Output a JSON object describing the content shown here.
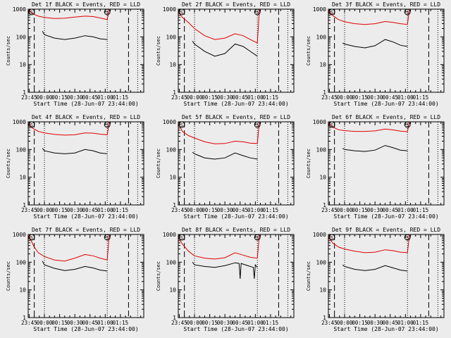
{
  "figure": {
    "background": "#ececec"
  },
  "chart_data": [
    {
      "type": "line",
      "title": "Det 1f BLACK = Events, RED = LLD",
      "xlabel": "Start Time (28-Jun-07 23:44:00)",
      "ylabel": "Counts/sec",
      "yscale": "log",
      "ylim": [
        1,
        1000
      ],
      "yticks": [
        "1",
        "10",
        "100",
        "1000"
      ],
      "xlim_minutes": [
        -16,
        98
      ],
      "xticks": [
        "23:45",
        "00:00",
        "00:15",
        "00:30",
        "00:45",
        "01:00",
        "01:15"
      ],
      "markers": [
        "S",
        "S"
      ],
      "series": [
        {
          "color": "#e00000",
          "x": [
            -16,
            -14,
            -10,
            -6,
            0,
            10,
            20,
            30,
            40,
            48,
            55,
            62,
            64
          ],
          "y": [
            1000,
            800,
            640,
            560,
            500,
            460,
            470,
            520,
            560,
            540,
            480,
            420,
            1000
          ]
        },
        {
          "color": "#000000",
          "x": [
            -2,
            0,
            10,
            20,
            30,
            40,
            48,
            55,
            62
          ],
          "y": [
            160,
            120,
            90,
            80,
            90,
            110,
            100,
            85,
            80
          ]
        }
      ]
    },
    {
      "type": "line",
      "title": "Det 2f BLACK = Events, RED = LLD",
      "xlabel": "Start Time (28-Jun-07 23:44:00)",
      "ylabel": "Counts/sec",
      "yscale": "log",
      "ylim": [
        1,
        1000
      ],
      "yticks": [
        "1",
        "10",
        "100",
        "1000"
      ],
      "xlim_minutes": [
        -16,
        98
      ],
      "xticks": [
        "23:45",
        "00:00",
        "00:15",
        "00:30",
        "00:45",
        "01:00",
        "01:15"
      ],
      "markers": [
        "S",
        "S"
      ],
      "series": [
        {
          "color": "#e00000",
          "x": [
            -16,
            -12,
            -6,
            0,
            10,
            20,
            30,
            40,
            48,
            55,
            62,
            64
          ],
          "y": [
            800,
            500,
            330,
            200,
            110,
            80,
            90,
            130,
            110,
            80,
            60,
            1000
          ]
        },
        {
          "color": "#000000",
          "x": [
            -2,
            0,
            10,
            20,
            30,
            40,
            48,
            55,
            62
          ],
          "y": [
            70,
            55,
            30,
            20,
            25,
            55,
            45,
            30,
            20
          ]
        }
      ]
    },
    {
      "type": "line",
      "title": "Det 3f BLACK = Events, RED = LLD",
      "xlabel": "Start Time (28-Jun-07 23:44:00)",
      "ylabel": "Counts/sec",
      "yscale": "log",
      "ylim": [
        1,
        1000
      ],
      "yticks": [
        "1",
        "10",
        "100",
        "1000"
      ],
      "xlim_minutes": [
        -16,
        98
      ],
      "xticks": [
        "23:45",
        "00:00",
        "00:15",
        "00:30",
        "00:45",
        "01:00",
        "01:15"
      ],
      "markers": [
        "S",
        "S"
      ],
      "series": [
        {
          "color": "#e00000",
          "x": [
            -16,
            -12,
            -6,
            0,
            10,
            20,
            30,
            40,
            48,
            55,
            62,
            64
          ],
          "y": [
            900,
            600,
            420,
            350,
            300,
            280,
            300,
            360,
            330,
            300,
            280,
            1000
          ]
        },
        {
          "color": "#000000",
          "x": [
            -2,
            0,
            10,
            20,
            30,
            40,
            48,
            55,
            62
          ],
          "y": [
            60,
            55,
            45,
            40,
            48,
            80,
            65,
            50,
            45
          ]
        }
      ]
    },
    {
      "type": "line",
      "title": "Det 4f BLACK = Events, RED = LLD",
      "xlabel": "Start Time (28-Jun-07 23:44:00)",
      "ylabel": "Counts/sec",
      "yscale": "log",
      "ylim": [
        1,
        1000
      ],
      "yticks": [
        "1",
        "10",
        "100",
        "1000"
      ],
      "xlim_minutes": [
        -16,
        98
      ],
      "xticks": [
        "23:45",
        "00:00",
        "00:15",
        "00:30",
        "00:45",
        "01:00",
        "01:15"
      ],
      "markers": [
        "S",
        "S"
      ],
      "series": [
        {
          "color": "#e00000",
          "x": [
            -16,
            -12,
            -6,
            0,
            10,
            20,
            30,
            40,
            48,
            55,
            62,
            64
          ],
          "y": [
            900,
            600,
            450,
            400,
            350,
            330,
            340,
            400,
            390,
            360,
            340,
            1000
          ]
        },
        {
          "color": "#000000",
          "x": [
            -2,
            0,
            10,
            20,
            30,
            40,
            48,
            55,
            62
          ],
          "y": [
            110,
            90,
            75,
            70,
            75,
            100,
            90,
            75,
            70
          ]
        }
      ]
    },
    {
      "type": "line",
      "title": "Det 5f BLACK = Events, RED = LLD",
      "xlabel": "Start Time (28-Jun-07 23:44:00)",
      "ylabel": "Counts/sec",
      "yscale": "log",
      "ylim": [
        1,
        1000
      ],
      "yticks": [
        "1",
        "10",
        "100",
        "1000"
      ],
      "xlim_minutes": [
        -16,
        98
      ],
      "xticks": [
        "23:45",
        "00:00",
        "00:15",
        "00:30",
        "00:45",
        "01:00",
        "01:15"
      ],
      "markers": [
        "S",
        "S"
      ],
      "series": [
        {
          "color": "#e00000",
          "x": [
            -16,
            -12,
            -6,
            0,
            10,
            20,
            30,
            40,
            48,
            55,
            62,
            64
          ],
          "y": [
            900,
            450,
            320,
            260,
            190,
            160,
            165,
            200,
            190,
            170,
            165,
            1000
          ]
        },
        {
          "color": "#000000",
          "x": [
            -2,
            0,
            10,
            20,
            30,
            40,
            48,
            55,
            62
          ],
          "y": [
            80,
            70,
            50,
            45,
            50,
            75,
            60,
            50,
            45
          ]
        }
      ]
    },
    {
      "type": "line",
      "title": "Det 6f BLACK = Events, RED = LLD",
      "xlabel": "Start Time (28-Jun-07 23:44:00)",
      "ylabel": "Counts/sec",
      "yscale": "log",
      "ylim": [
        1,
        1000
      ],
      "yticks": [
        "1",
        "10",
        "100",
        "1000"
      ],
      "xlim_minutes": [
        -16,
        98
      ],
      "xticks": [
        "23:45",
        "00:00",
        "00:15",
        "00:30",
        "00:45",
        "01:00",
        "01:15"
      ],
      "markers": [
        "S",
        "S"
      ],
      "series": [
        {
          "color": "#e00000",
          "x": [
            -16,
            -12,
            -6,
            0,
            10,
            20,
            30,
            40,
            48,
            55,
            62,
            64
          ],
          "y": [
            900,
            650,
            520,
            480,
            450,
            450,
            470,
            550,
            510,
            460,
            440,
            1000
          ]
        },
        {
          "color": "#000000",
          "x": [
            -2,
            0,
            10,
            20,
            30,
            40,
            48,
            55,
            62
          ],
          "y": [
            110,
            100,
            90,
            85,
            95,
            140,
            115,
            95,
            90
          ]
        }
      ]
    },
    {
      "type": "line",
      "title": "Det 7f BLACK = Events, RED = LLD",
      "xlabel": "Start Time (28-Jun-07 23:44:00)",
      "ylabel": "Counts/sec",
      "yscale": "log",
      "ylim": [
        1,
        1000
      ],
      "yticks": [
        "1",
        "10",
        "100",
        "1000"
      ],
      "xlim_minutes": [
        -16,
        98
      ],
      "xticks": [
        "23:45",
        "00:00",
        "00:15",
        "00:30",
        "00:45",
        "01:00",
        "01:15"
      ],
      "markers": [
        "S",
        "S"
      ],
      "series": [
        {
          "color": "#e00000",
          "x": [
            -16,
            -14,
            -10,
            -6,
            0,
            10,
            20,
            30,
            40,
            48,
            55,
            62,
            64
          ],
          "y": [
            1000,
            700,
            350,
            220,
            160,
            120,
            110,
            140,
            190,
            170,
            140,
            120,
            1000
          ]
        },
        {
          "color": "#000000",
          "x": [
            -2,
            0,
            10,
            20,
            30,
            40,
            48,
            55,
            62
          ],
          "y": [
            110,
            80,
            60,
            50,
            55,
            70,
            62,
            52,
            48
          ]
        }
      ]
    },
    {
      "type": "line",
      "title": "Det 8f BLACK = Events, RED = LLD",
      "xlabel": "Start Time (28-Jun-07 23:44:00)",
      "ylabel": "Counts/sec",
      "yscale": "log",
      "ylim": [
        1,
        1000
      ],
      "yticks": [
        "1",
        "10",
        "100",
        "1000"
      ],
      "xlim_minutes": [
        -16,
        98
      ],
      "xticks": [
        "23:45",
        "00:00",
        "00:15",
        "00:30",
        "00:45",
        "01:00",
        "01:15"
      ],
      "markers": [
        "S",
        "S"
      ],
      "series": [
        {
          "color": "#e00000",
          "x": [
            -16,
            -12,
            -6,
            0,
            10,
            20,
            30,
            40,
            48,
            55,
            62,
            64
          ],
          "y": [
            800,
            450,
            250,
            170,
            140,
            130,
            145,
            220,
            180,
            150,
            140,
            1000
          ]
        },
        {
          "color": "#000000",
          "x": [
            -2,
            0,
            10,
            20,
            30,
            40,
            44,
            45,
            46,
            48,
            55,
            58,
            59,
            60,
            62
          ],
          "y": [
            100,
            80,
            70,
            65,
            75,
            95,
            90,
            25,
            90,
            85,
            70,
            65,
            25,
            80,
            65
          ]
        }
      ]
    },
    {
      "type": "line",
      "title": "Det 9f BLACK = Events, RED = LLD",
      "xlabel": "Start Time (28-Jun-07 23:44:00)",
      "ylabel": "Counts/sec",
      "yscale": "log",
      "ylim": [
        1,
        1000
      ],
      "yticks": [
        "1",
        "10",
        "100",
        "1000"
      ],
      "xlim_minutes": [
        -16,
        98
      ],
      "xticks": [
        "23:45",
        "00:00",
        "00:15",
        "00:30",
        "00:45",
        "01:00",
        "01:15"
      ],
      "markers": [
        "S",
        "S"
      ],
      "series": [
        {
          "color": "#e00000",
          "x": [
            -16,
            -12,
            -6,
            0,
            10,
            20,
            30,
            40,
            48,
            55,
            62,
            64
          ],
          "y": [
            900,
            500,
            350,
            300,
            250,
            220,
            230,
            280,
            260,
            230,
            220,
            1000
          ]
        },
        {
          "color": "#000000",
          "x": [
            -2,
            0,
            10,
            20,
            30,
            40,
            48,
            55,
            62
          ],
          "y": [
            80,
            70,
            55,
            50,
            55,
            75,
            62,
            52,
            48
          ]
        }
      ]
    }
  ]
}
